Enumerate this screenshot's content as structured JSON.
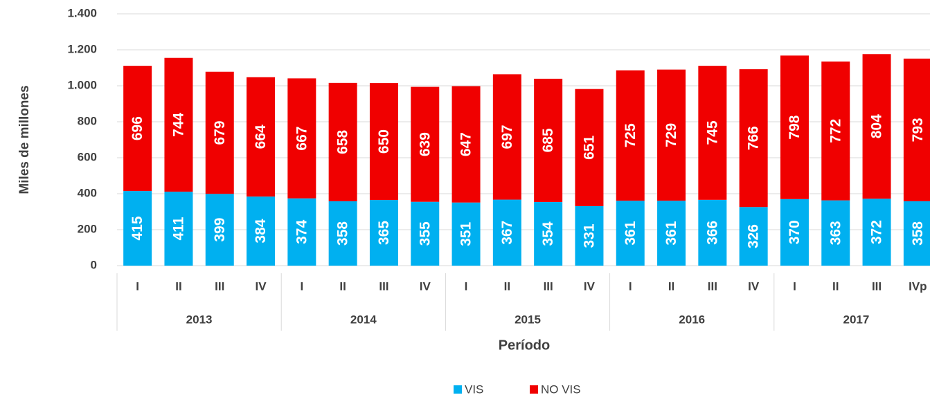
{
  "chart_data": {
    "type": "stacked_bar",
    "y_label": "Miles de millones",
    "x_label": "Período",
    "categories": [
      "I",
      "II",
      "III",
      "IV",
      "I",
      "II",
      "III",
      "IV",
      "I",
      "II",
      "III",
      "IV",
      "I",
      "II",
      "III",
      "IV",
      "I",
      "II",
      "III",
      "IVp"
    ],
    "category_groups": [
      "2013",
      "2014",
      "2015",
      "2016",
      "2017"
    ],
    "series": [
      {
        "name": "VIS",
        "color": "#00b0f0",
        "values": [
          415,
          411,
          399,
          384,
          374,
          358,
          365,
          355,
          351,
          367,
          354,
          331,
          361,
          361,
          366,
          326,
          370,
          363,
          372,
          358
        ]
      },
      {
        "name": "NO VIS",
        "color": "#f00000",
        "values": [
          696,
          744,
          679,
          664,
          667,
          658,
          650,
          639,
          647,
          697,
          685,
          651,
          725,
          729,
          745,
          766,
          798,
          772,
          804,
          793
        ]
      }
    ],
    "ylim": [
      0,
      1400
    ],
    "yticks": [
      0,
      200,
      400,
      600,
      800,
      {
        "value": 1000,
        "label": "1.000"
      },
      {
        "value": 1200,
        "label": "1.200"
      },
      {
        "value": 1400,
        "label": "1.400"
      }
    ],
    "grid": true,
    "legend": "bottom"
  }
}
